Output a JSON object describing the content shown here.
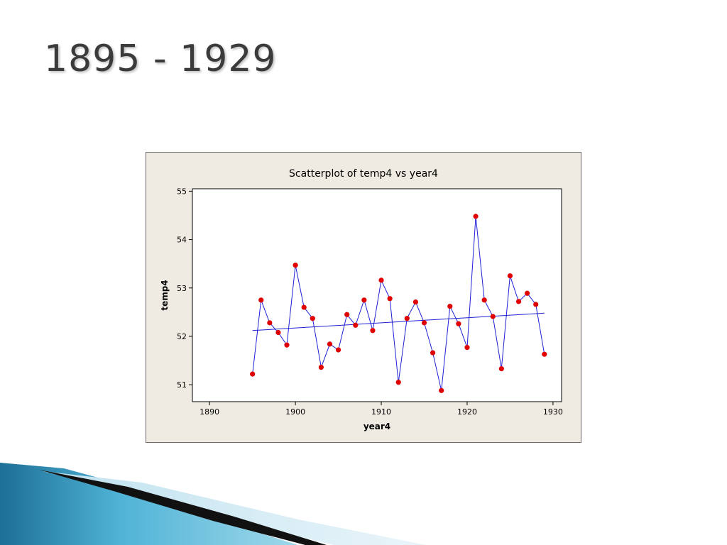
{
  "slide": {
    "title": "1895 - 1929"
  },
  "chart_data": {
    "type": "scatter",
    "title": "Scatterplot of temp4 vs year4",
    "xlabel": "year4",
    "ylabel": "temp4",
    "xlim": [
      1888,
      1931
    ],
    "ylim": [
      50.65,
      55.05
    ],
    "xticks": [
      1890,
      1900,
      1910,
      1920,
      1930
    ],
    "yticks": [
      51,
      52,
      53,
      54,
      55
    ],
    "grid": false,
    "connect_points": true,
    "series": [
      {
        "x": [
          1895,
          1896,
          1897,
          1898,
          1899,
          1900,
          1901,
          1902,
          1903,
          1904,
          1905,
          1906,
          1907,
          1908,
          1909,
          1910,
          1911,
          1912,
          1913,
          1914,
          1915,
          1916,
          1917,
          1918,
          1919,
          1920,
          1921,
          1922,
          1923,
          1924,
          1925,
          1926,
          1927,
          1928,
          1929
        ],
        "y": [
          51.22,
          52.75,
          52.28,
          52.08,
          51.82,
          53.47,
          52.6,
          52.37,
          51.36,
          51.84,
          51.72,
          52.45,
          52.23,
          52.75,
          52.12,
          53.16,
          52.78,
          51.05,
          52.37,
          52.71,
          52.28,
          51.66,
          50.88,
          52.62,
          52.26,
          51.77,
          54.48,
          52.75,
          52.41,
          51.33,
          53.25,
          52.72,
          52.89,
          52.66,
          51.63
        ]
      }
    ],
    "trendline": {
      "x": [
        1895,
        1929
      ],
      "y": [
        52.12,
        52.48
      ]
    },
    "colors": {
      "points": "#e00000",
      "line": "#1f1fd6",
      "trend": "#1f1fd6",
      "background": "#efebe2"
    }
  }
}
